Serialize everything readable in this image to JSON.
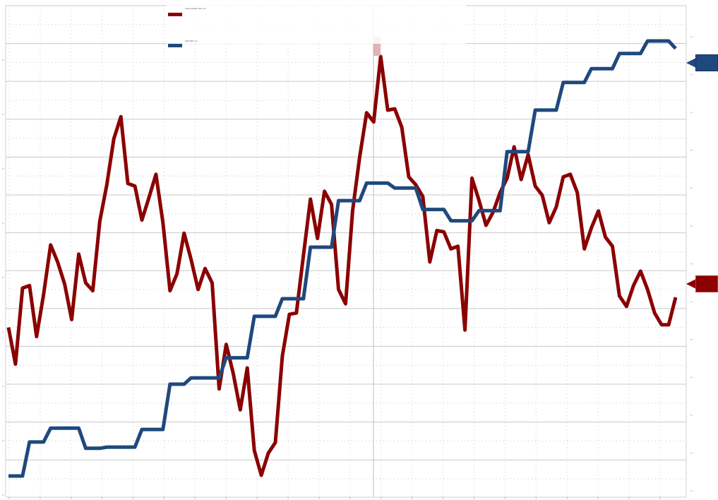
{
  "chart_data": {
    "type": "line",
    "title": "",
    "xlabel": "",
    "ylabel": "",
    "grid": true,
    "legend_position": "top-center",
    "x": [
      0,
      1,
      2,
      3,
      4,
      5,
      6,
      7,
      8,
      9,
      10,
      11,
      12,
      13,
      14,
      15,
      16,
      17,
      18,
      19,
      20,
      21,
      22,
      23,
      24,
      25,
      26,
      27,
      28,
      29,
      30,
      31,
      32,
      33,
      34,
      35,
      36,
      37,
      38,
      39,
      40,
      41,
      42,
      43,
      44,
      45,
      46,
      47,
      48,
      49,
      50,
      51,
      52,
      53,
      54,
      55,
      56,
      57,
      58,
      59,
      60,
      61,
      62,
      63,
      64,
      65,
      66,
      67,
      68,
      69,
      70,
      71,
      72,
      73,
      74,
      75,
      76,
      77,
      78,
      79,
      80,
      81,
      82,
      83,
      84,
      85,
      86,
      87,
      88,
      89,
      90,
      91,
      92,
      93,
      94,
      95
    ],
    "series": [
      {
        "name": "Texas Pacific Gas, Inc.",
        "color": "#8b0000",
        "values": [
          45.1,
          42.3,
          48.1,
          48.3,
          44.4,
          47.6,
          51.4,
          50.1,
          48.4,
          45.7,
          50.7,
          48.5,
          47.9,
          53.2,
          56.0,
          59.5,
          61.2,
          56.1,
          55.9,
          53.3,
          55.0,
          56.8,
          53.1,
          47.9,
          49.2,
          52.3,
          50.3,
          48.0,
          49.6,
          48.5,
          40.4,
          43.8,
          41.6,
          38.8,
          42.0,
          35.7,
          33.8,
          35.5,
          36.3,
          42.9,
          46.1,
          46.2,
          50.6,
          54.9,
          51.9,
          55.5,
          54.5,
          48.0,
          46.9,
          54.0,
          58.1,
          61.5,
          60.8,
          65.8,
          61.7,
          61.8,
          60.4,
          56.6,
          56.0,
          55.1,
          50.1,
          52.5,
          52.4,
          51.1,
          51.3,
          44.9,
          56.5,
          54.8,
          52.9,
          53.9,
          55.4,
          56.5,
          58.9,
          56.4,
          58.3,
          55.9,
          55.2,
          53.1,
          54.3,
          56.6,
          56.8,
          55.4,
          51.1,
          52.7,
          54.0,
          52.0,
          51.3,
          47.5,
          46.7,
          48.3,
          49.4,
          48.0,
          46.2,
          45.3,
          45.3,
          47.4
        ]
      },
      {
        "name": "S&P 500, Inc.",
        "color": "#1f497d",
        "values": [
          1085,
          1085,
          1085,
          1112,
          1112,
          1112,
          1123,
          1123,
          1123,
          1123,
          1123,
          1107,
          1107,
          1107,
          1108,
          1108,
          1108,
          1108,
          1108,
          1122,
          1122,
          1122,
          1122,
          1158,
          1158,
          1158,
          1163,
          1163,
          1163,
          1163,
          1163,
          1179,
          1179,
          1179,
          1179,
          1212,
          1212,
          1212,
          1212,
          1226,
          1226,
          1226,
          1226,
          1267,
          1267,
          1267,
          1267,
          1304,
          1304,
          1304,
          1304,
          1318,
          1318,
          1318,
          1318,
          1314,
          1314,
          1314,
          1314,
          1297,
          1297,
          1297,
          1297,
          1288,
          1288,
          1288,
          1288,
          1296,
          1296,
          1296,
          1296,
          1343,
          1343,
          1343,
          1343,
          1376,
          1376,
          1376,
          1376,
          1398,
          1398,
          1398,
          1398,
          1409,
          1409,
          1409,
          1409,
          1421,
          1421,
          1421,
          1421,
          1431,
          1431,
          1431,
          1431,
          1425
        ]
      }
    ]
  },
  "price_tags": [
    {
      "series": "S&P 500, Inc.",
      "color": "#1f497d"
    },
    {
      "series": "Texas Pacific Gas, Inc.",
      "color": "#8b0000"
    }
  ]
}
